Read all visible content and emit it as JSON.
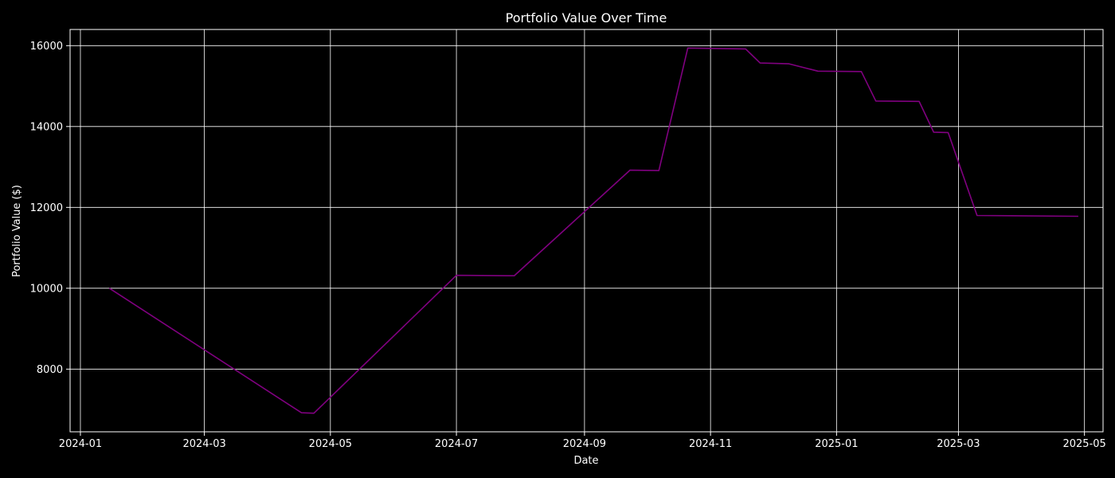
{
  "chart_data": {
    "type": "line",
    "title": "Portfolio Value Over Time",
    "xlabel": "Date",
    "ylabel": "Portfolio Value ($)",
    "x_ticks": [
      "2024-01",
      "2024-03",
      "2024-05",
      "2024-07",
      "2024-09",
      "2024-11",
      "2025-01",
      "2025-03",
      "2025-05"
    ],
    "y_ticks": [
      8000,
      10000,
      12000,
      14000,
      16000
    ],
    "xlim": [
      "2023-12-27",
      "2025-05-10"
    ],
    "ylim": [
      6450,
      16400
    ],
    "grid": true,
    "series": [
      {
        "color": "#800080",
        "x": [
          "2024-01-15",
          "2024-04-17",
          "2024-04-23",
          "2024-07-01",
          "2024-07-29",
          "2024-09-23",
          "2024-10-07",
          "2024-10-21",
          "2024-11-18",
          "2024-11-25",
          "2024-12-09",
          "2024-12-23",
          "2025-01-13",
          "2025-01-20",
          "2025-02-10",
          "2025-02-17",
          "2025-02-24",
          "2025-03-10",
          "2025-04-28"
        ],
        "y": [
          10000,
          6920,
          6910,
          10320,
          10310,
          12920,
          12910,
          15940,
          15920,
          15570,
          15550,
          15370,
          15360,
          14630,
          14620,
          13860,
          13850,
          11800,
          11780
        ]
      }
    ]
  }
}
